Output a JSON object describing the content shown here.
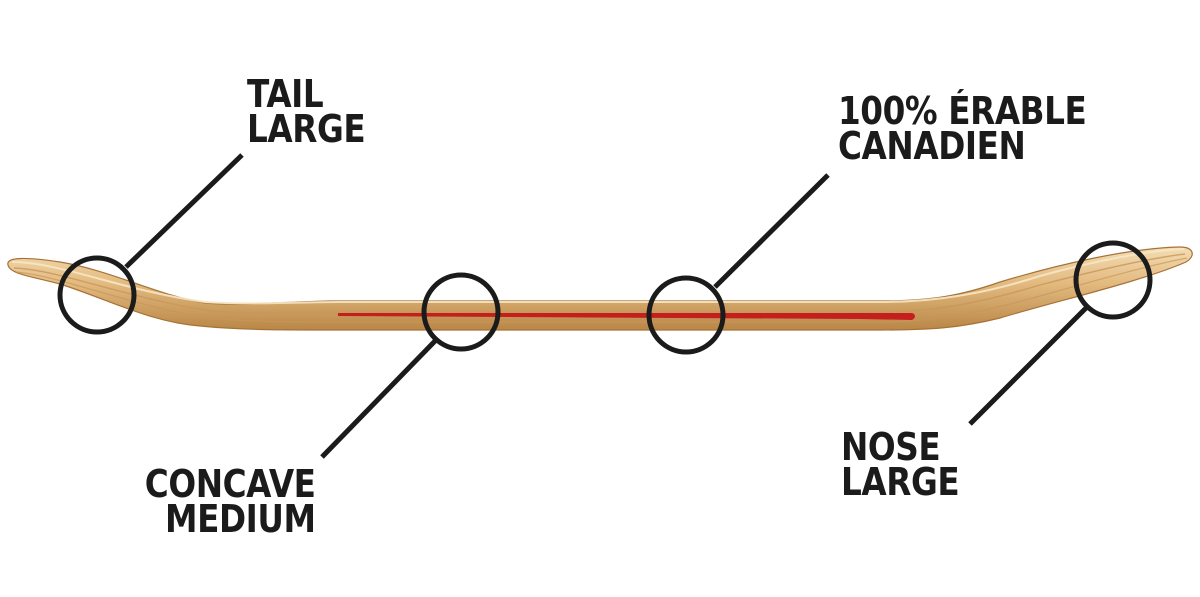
{
  "callouts": {
    "tail": {
      "line1": "TAIL",
      "line2": "LARGE"
    },
    "maple": {
      "line1": "100% ÉRABLE",
      "line2": "CANADIEN"
    },
    "concave": {
      "line1": "CONCAVE",
      "line2": "MEDIUM"
    },
    "nose": {
      "line1": "NOSE",
      "line2": "LARGE"
    }
  },
  "colors": {
    "wood_light": "#f0d6a6",
    "wood_mid": "#d9ac6e",
    "wood_dark": "#b07d43",
    "red_stripe": "#c41e1e",
    "ink": "#1b1b1b"
  }
}
